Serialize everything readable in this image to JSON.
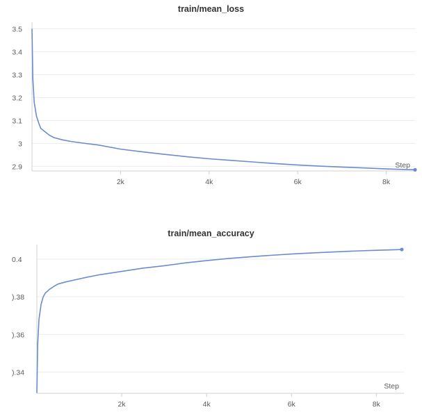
{
  "chart_data": [
    {
      "type": "line",
      "title": "train/mean_loss",
      "xlabel": "Step",
      "ylabel": "",
      "xlim": [
        0,
        8650
      ],
      "ylim": [
        2.88,
        3.51
      ],
      "x_ticks": [
        2000,
        4000,
        6000,
        8000
      ],
      "x_tick_labels": [
        "2k",
        "4k",
        "6k",
        "8k"
      ],
      "y_ticks": [
        2.9,
        3.0,
        3.1,
        3.2,
        3.3,
        3.4,
        3.5
      ],
      "y_tick_labels": [
        "2.9",
        "3",
        "3.1",
        "3.2",
        "3.3",
        "3.4",
        "3.5"
      ],
      "grid": true,
      "color": "#6a8ccf",
      "series": [
        {
          "x": [
            0,
            20,
            50,
            100,
            150,
            200,
            300,
            400,
            500,
            700,
            900,
            1200,
            1500,
            2000,
            2500,
            3000,
            3500,
            4000,
            4500,
            5000,
            5500,
            6000,
            6500,
            7000,
            7500,
            8000,
            8500,
            8650
          ],
          "y": [
            3.5,
            3.28,
            3.18,
            3.12,
            3.09,
            3.065,
            3.05,
            3.035,
            3.025,
            3.015,
            3.008,
            3.0,
            2.993,
            2.975,
            2.963,
            2.952,
            2.942,
            2.933,
            2.926,
            2.919,
            2.912,
            2.906,
            2.901,
            2.897,
            2.893,
            2.889,
            2.886,
            2.885
          ]
        }
      ]
    },
    {
      "type": "line",
      "title": "train/mean_accuracy",
      "xlabel": "Step",
      "ylabel": "",
      "xlim": [
        0,
        8650
      ],
      "ylim": [
        0.3288,
        0.4055
      ],
      "x_ticks": [
        2000,
        4000,
        6000,
        8000
      ],
      "x_tick_labels": [
        "2k",
        "4k",
        "6k",
        "8k"
      ],
      "y_ticks": [
        0.34,
        0.36,
        0.38,
        0.4
      ],
      "y_tick_labels": [
        ").34",
        ").36",
        ").38",
        "0.4"
      ],
      "grid": true,
      "color": "#6a8ccf",
      "series": [
        {
          "x": [
            0,
            20,
            50,
            100,
            150,
            200,
            300,
            400,
            500,
            700,
            900,
            1200,
            1500,
            2000,
            2500,
            3000,
            3500,
            4000,
            4500,
            5000,
            5500,
            6000,
            6500,
            7000,
            7500,
            8000,
            8500,
            8600
          ],
          "y": [
            0.329,
            0.355,
            0.368,
            0.376,
            0.38,
            0.382,
            0.384,
            0.3855,
            0.3868,
            0.388,
            0.389,
            0.3905,
            0.3918,
            0.3935,
            0.3952,
            0.3965,
            0.398,
            0.3992,
            0.4003,
            0.4012,
            0.402,
            0.4027,
            0.4033,
            0.4038,
            0.4043,
            0.4047,
            0.405,
            0.4051
          ]
        }
      ]
    }
  ]
}
